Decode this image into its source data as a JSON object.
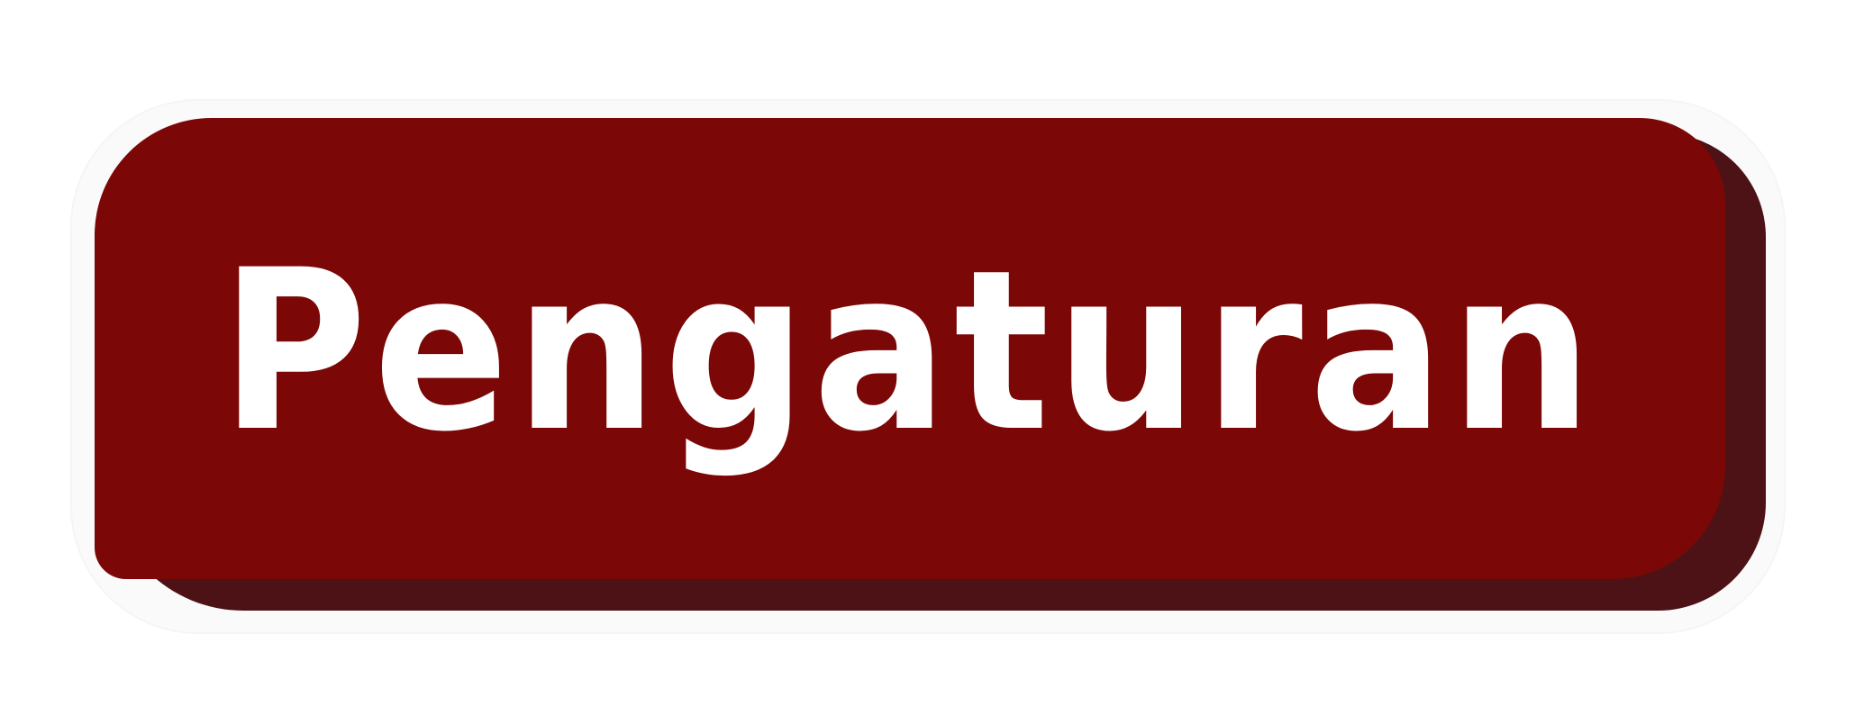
{
  "button": {
    "label": "Pengaturan",
    "face_color": "#7b0707",
    "shadow_color": "#4d1216",
    "text_color": "#ffffff"
  }
}
